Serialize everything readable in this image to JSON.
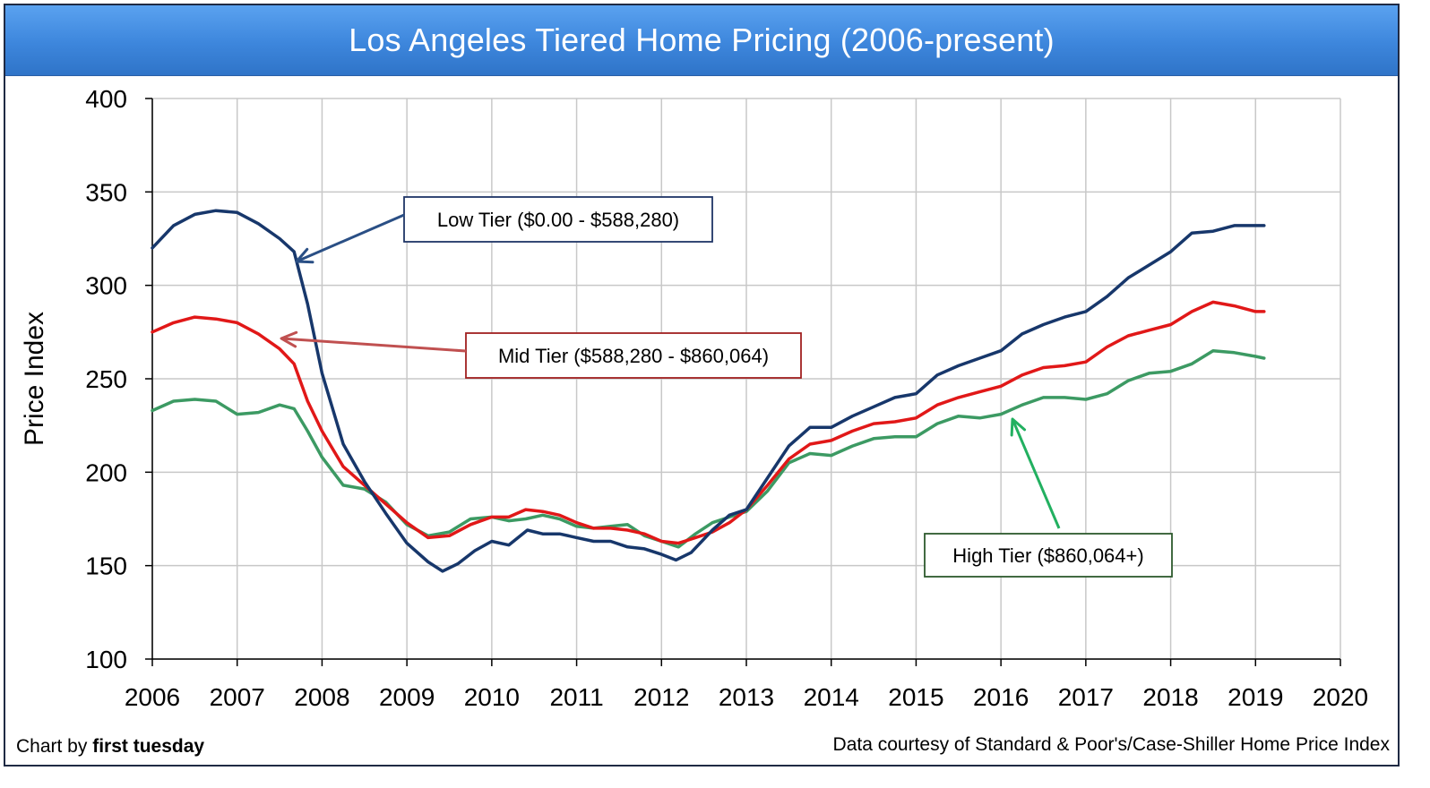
{
  "header": {
    "title": "Los Angeles Tiered Home Pricing (2006-present)"
  },
  "footer": {
    "credit_prefix": "Chart by",
    "credit_brand": "first tuesday",
    "source": "Data courtesy of Standard & Poor's/Case-Shiller Home Price Index"
  },
  "colors": {
    "low": "#17376b",
    "mid": "#e11818",
    "high": "#3c9a63",
    "grid": "#c8c8c8",
    "title_bg": "#3d86dc"
  },
  "chart_data": {
    "type": "line",
    "title": "Los Angeles Tiered Home Pricing (2006-present)",
    "xlabel": "",
    "ylabel": "Price Index",
    "xlim": [
      2006,
      2020
    ],
    "ylim": [
      100,
      400
    ],
    "xticks": [
      2006,
      2007,
      2008,
      2009,
      2010,
      2011,
      2012,
      2013,
      2014,
      2015,
      2016,
      2017,
      2018,
      2019,
      2020
    ],
    "yticks": [
      100,
      150,
      200,
      250,
      300,
      350,
      400
    ],
    "grid": true,
    "annotations": [
      {
        "text": "Low Tier ($0.00 - $588,280)",
        "series": "low"
      },
      {
        "text": "Mid Tier ($588,280 - $860,064)",
        "series": "mid"
      },
      {
        "text": "High Tier ($860,064+)",
        "series": "high"
      }
    ],
    "series": [
      {
        "key": "low",
        "x": [
          2006.0,
          2006.25,
          2006.5,
          2006.75,
          2007.0,
          2007.25,
          2007.5,
          2007.67,
          2007.83,
          2008.0,
          2008.25,
          2008.5,
          2008.75,
          2009.0,
          2009.25,
          2009.42,
          2009.6,
          2009.8,
          2010.0,
          2010.2,
          2010.42,
          2010.6,
          2010.8,
          2011.0,
          2011.2,
          2011.4,
          2011.6,
          2011.8,
          2012.0,
          2012.17,
          2012.35,
          2012.6,
          2012.8,
          2013.0,
          2013.25,
          2013.5,
          2013.75,
          2014.0,
          2014.25,
          2014.5,
          2014.75,
          2015.0,
          2015.25,
          2015.5,
          2015.75,
          2016.0,
          2016.25,
          2016.5,
          2016.75,
          2017.0,
          2017.25,
          2017.5,
          2017.75,
          2018.0,
          2018.25,
          2018.5,
          2018.75,
          2019.0,
          2019.1
        ],
        "values": [
          320,
          332,
          338,
          340,
          339,
          333,
          325,
          318,
          290,
          253,
          215,
          195,
          178,
          162,
          152,
          147,
          151,
          158,
          163,
          161,
          169,
          167,
          167,
          165,
          163,
          163,
          160,
          159,
          156,
          153,
          157,
          169,
          177,
          180,
          197,
          214,
          224,
          224,
          230,
          235,
          240,
          242,
          252,
          257,
          261,
          265,
          274,
          279,
          283,
          286,
          294,
          304,
          311,
          318,
          328,
          329,
          332,
          332,
          332
        ]
      },
      {
        "key": "mid",
        "x": [
          2006.0,
          2006.25,
          2006.5,
          2006.75,
          2007.0,
          2007.25,
          2007.5,
          2007.67,
          2007.83,
          2008.0,
          2008.25,
          2008.5,
          2008.75,
          2009.0,
          2009.25,
          2009.5,
          2009.75,
          2010.0,
          2010.2,
          2010.4,
          2010.6,
          2010.8,
          2011.0,
          2011.2,
          2011.4,
          2011.6,
          2011.8,
          2012.0,
          2012.2,
          2012.4,
          2012.6,
          2012.8,
          2013.0,
          2013.25,
          2013.5,
          2013.75,
          2014.0,
          2014.25,
          2014.5,
          2014.75,
          2015.0,
          2015.25,
          2015.5,
          2015.75,
          2016.0,
          2016.25,
          2016.5,
          2016.75,
          2017.0,
          2017.25,
          2017.5,
          2017.75,
          2018.0,
          2018.25,
          2018.5,
          2018.75,
          2019.0,
          2019.1
        ],
        "values": [
          275,
          280,
          283,
          282,
          280,
          274,
          266,
          258,
          238,
          222,
          203,
          193,
          183,
          173,
          165,
          166,
          172,
          176,
          176,
          180,
          179,
          177,
          173,
          170,
          170,
          169,
          167,
          163,
          162,
          165,
          168,
          173,
          180,
          193,
          207,
          215,
          217,
          222,
          226,
          227,
          229,
          236,
          240,
          243,
          246,
          252,
          256,
          257,
          259,
          267,
          273,
          276,
          279,
          286,
          291,
          289,
          286,
          286
        ]
      },
      {
        "key": "high",
        "x": [
          2006.0,
          2006.25,
          2006.5,
          2006.75,
          2007.0,
          2007.25,
          2007.5,
          2007.67,
          2007.83,
          2008.0,
          2008.25,
          2008.5,
          2008.75,
          2009.0,
          2009.25,
          2009.5,
          2009.75,
          2010.0,
          2010.2,
          2010.4,
          2010.6,
          2010.8,
          2011.0,
          2011.2,
          2011.4,
          2011.6,
          2011.8,
          2012.0,
          2012.2,
          2012.4,
          2012.6,
          2012.8,
          2013.0,
          2013.25,
          2013.5,
          2013.75,
          2014.0,
          2014.25,
          2014.5,
          2014.75,
          2015.0,
          2015.25,
          2015.5,
          2015.75,
          2016.0,
          2016.25,
          2016.5,
          2016.75,
          2017.0,
          2017.25,
          2017.5,
          2017.75,
          2018.0,
          2018.25,
          2018.5,
          2018.75,
          2019.0,
          2019.1
        ],
        "values": [
          233,
          238,
          239,
          238,
          231,
          232,
          236,
          234,
          222,
          208,
          193,
          191,
          184,
          172,
          166,
          168,
          175,
          176,
          174,
          175,
          177,
          175,
          171,
          170,
          171,
          172,
          166,
          163,
          160,
          167,
          173,
          176,
          179,
          190,
          205,
          210,
          209,
          214,
          218,
          219,
          219,
          226,
          230,
          229,
          231,
          236,
          240,
          240,
          239,
          242,
          249,
          253,
          254,
          258,
          265,
          264,
          262,
          261
        ]
      }
    ]
  }
}
